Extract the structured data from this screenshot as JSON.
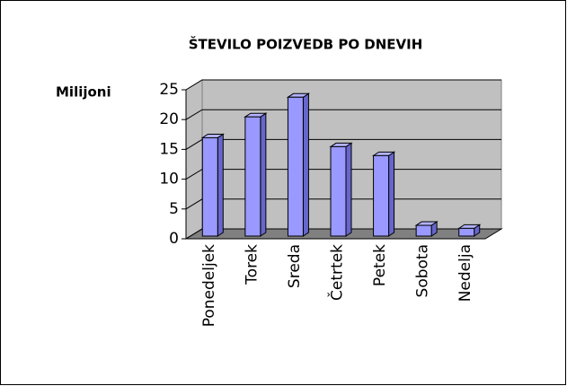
{
  "chart_data": {
    "type": "bar3d",
    "title": "ŠTEVILO POIZVEDB PO DNEVIH",
    "y_label": "Milijoni",
    "categories": [
      "Ponedeljek",
      "Torek",
      "Sreda",
      "Četrtek",
      "Petek",
      "Sobota",
      "Nedelja"
    ],
    "values": [
      16.5,
      20,
      23.3,
      15,
      13.5,
      1.8,
      1.3
    ],
    "color": "#9999ff",
    "ylim": [
      0,
      25
    ],
    "yticks": [
      0,
      5,
      10,
      15,
      20,
      25
    ],
    "grid": true
  }
}
